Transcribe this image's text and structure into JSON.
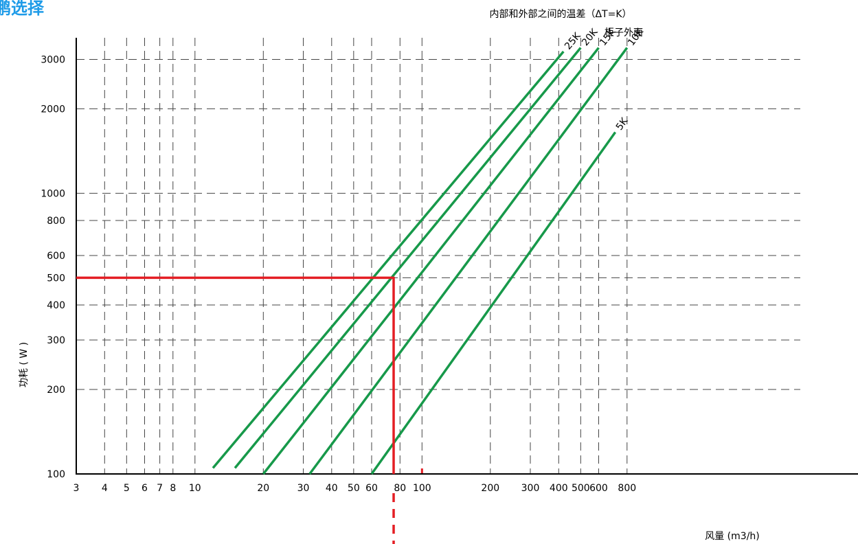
{
  "heading": "鹏选择",
  "chart_data": {
    "type": "line",
    "title": "内部和外部之间的温差（ΔT=K）",
    "subtitle": "柜子外面",
    "xlabel": "风量 (m3/h)",
    "ylabel": "功耗 ( W )",
    "x_scale": "log",
    "y_scale": "log",
    "xlim": [
      3,
      1200
    ],
    "ylim": [
      100,
      3500
    ],
    "x_ticks": [
      3,
      4,
      5,
      6,
      7,
      8,
      10,
      20,
      30,
      40,
      50,
      60,
      80,
      100,
      200,
      300,
      400,
      500,
      600,
      800
    ],
    "y_ticks": [
      100,
      200,
      300,
      400,
      500,
      600,
      800,
      1000,
      2000,
      3000
    ],
    "grid": true,
    "series_color": "#17994a",
    "series": [
      {
        "name": "25K",
        "points": [
          [
            12,
            105
          ],
          [
            420,
            3200
          ]
        ]
      },
      {
        "name": "20K",
        "points": [
          [
            15,
            105
          ],
          [
            500,
            3300
          ]
        ]
      },
      {
        "name": "15K",
        "points": [
          [
            20,
            100
          ],
          [
            600,
            3300
          ]
        ]
      },
      {
        "name": "10K",
        "points": [
          [
            32,
            100
          ],
          [
            800,
            3300
          ]
        ]
      },
      {
        "name": "5K",
        "points": [
          [
            60,
            100
          ],
          [
            710,
            1650
          ]
        ]
      }
    ],
    "annotation": {
      "color": "#e41e24",
      "y": 500,
      "x": 75,
      "description": "selection example"
    }
  }
}
